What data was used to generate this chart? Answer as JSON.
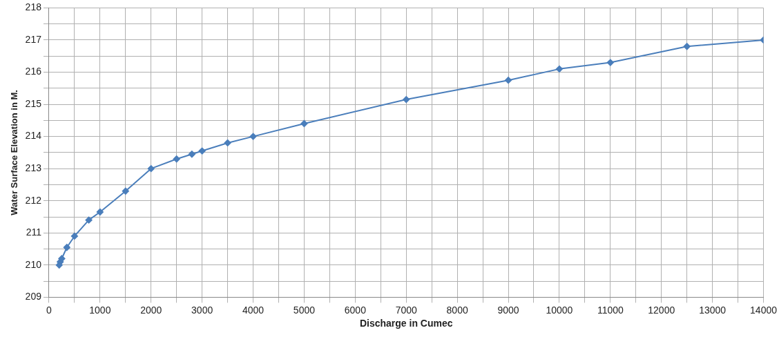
{
  "chart_data": {
    "type": "line",
    "xlabel": "Discharge in Cumec",
    "ylabel": "Water Surface Elevation in M.",
    "x": [
      200,
      220,
      250,
      350,
      500,
      780,
      1000,
      1500,
      2000,
      2500,
      2800,
      3000,
      3500,
      4000,
      5000,
      7000,
      9000,
      10000,
      11000,
      12500,
      14000
    ],
    "series": [
      {
        "color": "#4a7ebb",
        "values": [
          210.0,
          210.1,
          210.2,
          210.55,
          210.9,
          211.4,
          211.65,
          212.3,
          213.0,
          213.3,
          213.45,
          213.55,
          213.8,
          214.0,
          214.4,
          215.15,
          215.75,
          216.1,
          216.3,
          216.8,
          217.0
        ]
      }
    ],
    "xlim": [
      0,
      14000
    ],
    "xticks": [
      0,
      {
        "value": 500,
        "label": null
      },
      1000,
      {
        "value": 1500,
        "label": null
      },
      2000,
      {
        "value": 2500,
        "label": null
      },
      3000,
      {
        "value": 3500,
        "label": null
      },
      4000,
      {
        "value": 4500,
        "label": null
      },
      5000,
      {
        "value": 5500,
        "label": null
      },
      6000,
      {
        "value": 6500,
        "label": null
      },
      7000,
      {
        "value": 7500,
        "label": null
      },
      8000,
      {
        "value": 8500,
        "label": null
      },
      9000,
      {
        "value": 9500,
        "label": null
      },
      10000,
      {
        "value": 10500,
        "label": null
      },
      11000,
      {
        "value": 11500,
        "label": null
      },
      12000,
      {
        "value": 12500,
        "label": null
      },
      13000,
      {
        "value": 13500,
        "label": null
      },
      14000
    ],
    "ylim": [
      209,
      218
    ],
    "yticks": [
      209,
      {
        "value": 209.5,
        "label": null
      },
      210,
      {
        "value": 210.5,
        "label": null
      },
      211,
      {
        "value": 211.5,
        "label": null
      },
      212,
      {
        "value": 212.5,
        "label": null
      },
      213,
      {
        "value": 213.5,
        "label": null
      },
      214,
      {
        "value": 214.5,
        "label": null
      },
      215,
      {
        "value": 215.5,
        "label": null
      },
      216,
      {
        "value": 216.5,
        "label": null
      },
      217,
      {
        "value": 217.5,
        "label": null
      },
      218
    ],
    "grid": true,
    "marker": "diamond",
    "line_style": "solid",
    "legend": false
  }
}
